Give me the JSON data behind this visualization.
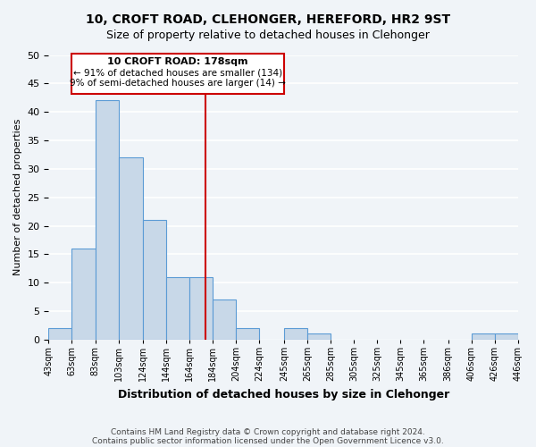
{
  "title": "10, CROFT ROAD, CLEHONGER, HEREFORD, HR2 9ST",
  "subtitle": "Size of property relative to detached houses in Clehonger",
  "xlabel": "Distribution of detached houses by size in Clehonger",
  "ylabel": "Number of detached properties",
  "bar_color": "#c8d8e8",
  "bar_edge_color": "#5b9bd5",
  "vline_x": 178,
  "vline_color": "#cc0000",
  "bin_edges": [
    43,
    63,
    83,
    103,
    124,
    144,
    164,
    184,
    204,
    224,
    245,
    265,
    285,
    305,
    325,
    345,
    365,
    386,
    406,
    426,
    446
  ],
  "bin_labels": [
    "43sqm",
    "63sqm",
    "83sqm",
    "103sqm",
    "124sqm",
    "144sqm",
    "164sqm",
    "184sqm",
    "204sqm",
    "224sqm",
    "245sqm",
    "265sqm",
    "285sqm",
    "305sqm",
    "325sqm",
    "345sqm",
    "365sqm",
    "386sqm",
    "406sqm",
    "426sqm",
    "446sqm"
  ],
  "counts": [
    2,
    16,
    42,
    32,
    21,
    11,
    11,
    7,
    2,
    0,
    2,
    1,
    0,
    0,
    0,
    0,
    0,
    0,
    1,
    1
  ],
  "ylim": [
    0,
    50
  ],
  "yticks": [
    0,
    5,
    10,
    15,
    20,
    25,
    30,
    35,
    40,
    45,
    50
  ],
  "annotation_title": "10 CROFT ROAD: 178sqm",
  "annotation_line1": "← 91% of detached houses are smaller (134)",
  "annotation_line2": "9% of semi-detached houses are larger (14) →",
  "annotation_box_color": "#ffffff",
  "annotation_box_edge": "#cc0000",
  "footer1": "Contains HM Land Registry data © Crown copyright and database right 2024.",
  "footer2": "Contains public sector information licensed under the Open Government Licence v3.0.",
  "bg_color": "#f0f4f8",
  "grid_color": "#ffffff"
}
